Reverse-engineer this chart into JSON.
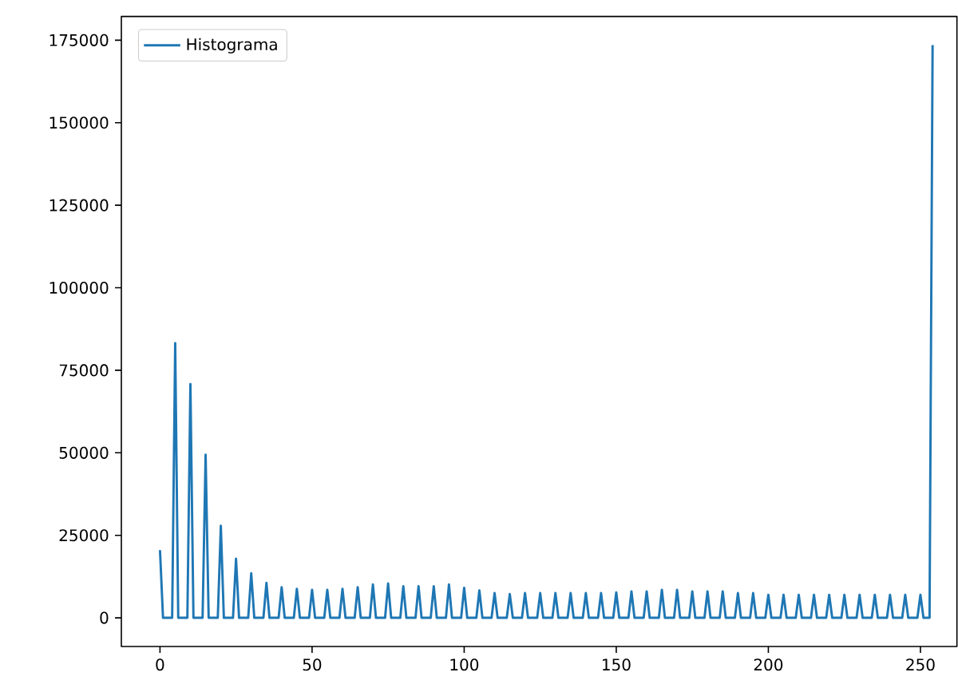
{
  "chart_data": {
    "type": "line",
    "x": [
      0,
      1,
      4,
      5,
      6,
      9,
      10,
      11,
      14,
      15,
      16,
      19,
      20,
      21,
      24,
      25,
      26,
      29,
      30,
      31,
      34,
      35,
      36,
      39,
      40,
      41,
      44,
      45,
      46,
      49,
      50,
      51,
      54,
      55,
      56,
      59,
      60,
      61,
      64,
      65,
      66,
      69,
      70,
      71,
      74,
      75,
      76,
      79,
      80,
      81,
      84,
      85,
      86,
      89,
      90,
      91,
      94,
      95,
      96,
      99,
      100,
      101,
      104,
      105,
      106,
      109,
      110,
      111,
      114,
      115,
      116,
      119,
      120,
      121,
      124,
      125,
      126,
      129,
      130,
      131,
      134,
      135,
      136,
      139,
      140,
      141,
      144,
      145,
      146,
      149,
      150,
      151,
      154,
      155,
      156,
      159,
      160,
      161,
      164,
      165,
      166,
      169,
      170,
      171,
      174,
      175,
      176,
      179,
      180,
      181,
      184,
      185,
      186,
      189,
      190,
      191,
      194,
      195,
      196,
      199,
      200,
      201,
      204,
      205,
      206,
      209,
      210,
      211,
      214,
      215,
      216,
      219,
      220,
      221,
      224,
      225,
      226,
      229,
      230,
      231,
      234,
      235,
      236,
      239,
      240,
      241,
      244,
      245,
      246,
      249,
      250,
      251,
      253,
      254
    ],
    "series": [
      {
        "name": "Histograma",
        "color": "#1f77b4",
        "values": [
          20500,
          0,
          0,
          83200,
          0,
          0,
          70800,
          0,
          0,
          49400,
          0,
          0,
          27900,
          0,
          0,
          17900,
          0,
          0,
          13500,
          0,
          0,
          10600,
          0,
          0,
          9300,
          0,
          0,
          8800,
          0,
          0,
          8500,
          0,
          0,
          8500,
          0,
          0,
          8800,
          0,
          0,
          9300,
          0,
          0,
          10100,
          0,
          0,
          10400,
          0,
          0,
          9600,
          0,
          0,
          9600,
          0,
          0,
          9600,
          0,
          0,
          10100,
          0,
          0,
          9100,
          0,
          0,
          8300,
          0,
          0,
          7500,
          0,
          0,
          7200,
          0,
          0,
          7500,
          0,
          0,
          7500,
          0,
          0,
          7500,
          0,
          0,
          7500,
          0,
          0,
          7500,
          0,
          0,
          7500,
          0,
          0,
          7700,
          0,
          0,
          8000,
          0,
          0,
          8000,
          0,
          0,
          8500,
          0,
          0,
          8500,
          0,
          0,
          8000,
          0,
          0,
          8000,
          0,
          0,
          8000,
          0,
          0,
          7500,
          0,
          0,
          7500,
          0,
          0,
          7000,
          0,
          0,
          7000,
          0,
          0,
          7000,
          0,
          0,
          7000,
          0,
          0,
          7000,
          0,
          0,
          7000,
          0,
          0,
          7000,
          0,
          0,
          7000,
          0,
          0,
          7000,
          0,
          0,
          7000,
          0,
          0,
          7000,
          0,
          0,
          173500
        ]
      }
    ],
    "xlim": [
      -12.7,
      262
    ],
    "ylim": [
      -8675,
      182175
    ],
    "xticks": [
      0,
      50,
      100,
      150,
      200,
      250
    ],
    "yticks": [
      0,
      25000,
      50000,
      75000,
      100000,
      125000,
      150000,
      175000
    ],
    "legend": "top left",
    "marker": "none",
    "line_style": "solid",
    "grid": false
  }
}
